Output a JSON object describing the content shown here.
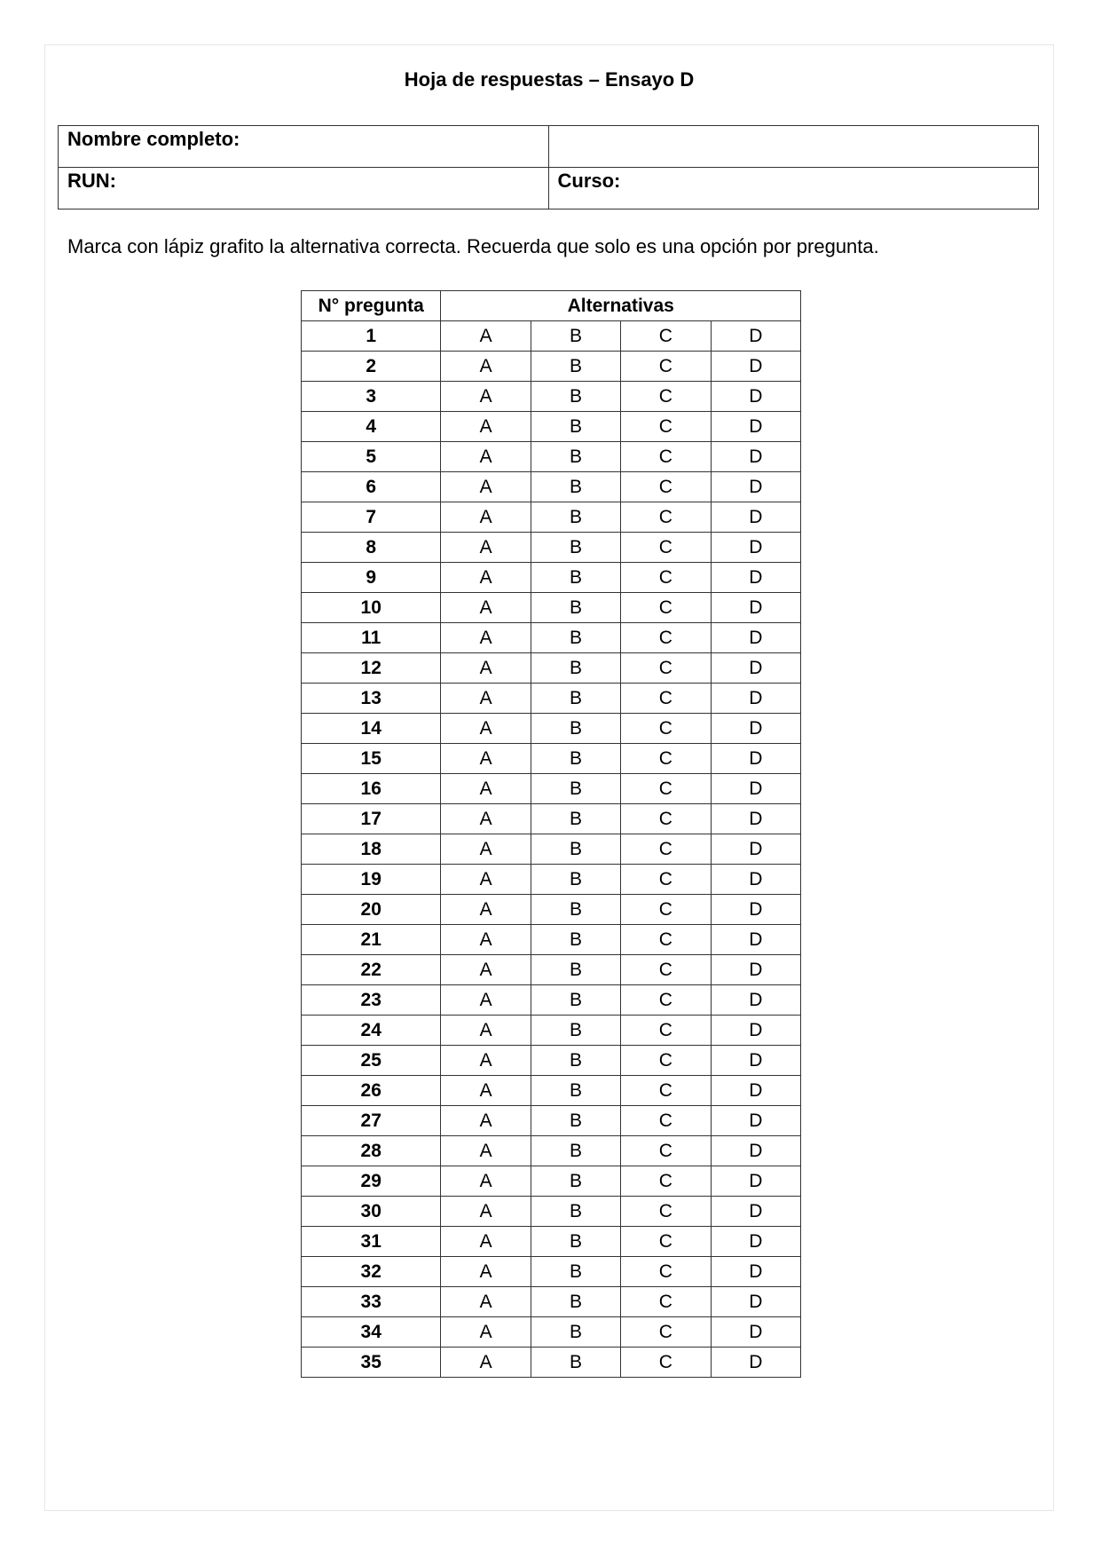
{
  "title": "Hoja de respuestas – Ensayo D",
  "info": {
    "name_label": "Nombre completo:",
    "run_label": "RUN:",
    "course_label": "Curso:"
  },
  "instruction": "Marca con lápiz grafito la alternativa correcta. Recuerda que solo es una opción por pregunta.",
  "answer_table": {
    "header_number": "N° pregunta",
    "header_options": "Alternativas",
    "options": [
      "A",
      "B",
      "C",
      "D"
    ],
    "question_count": 35
  }
}
